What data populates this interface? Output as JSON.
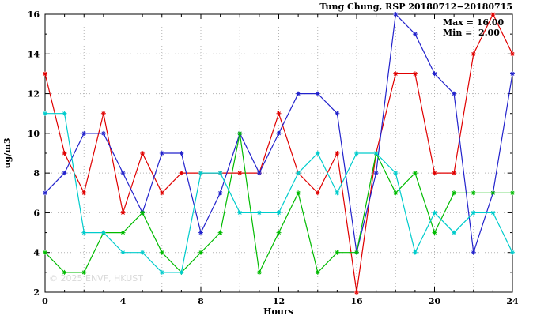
{
  "title": "Tung Chung, RSP 20180712−20180715",
  "annotations": {
    "max": "Max = 16.00",
    "min": "Min =  2.00"
  },
  "watermark": "© 2025 ENVF, HKUST",
  "chart_data": {
    "type": "line",
    "title": "Tung Chung, RSP 20180712−20180715",
    "xlabel": "Hours",
    "ylabel": "ug/m3",
    "xlim": [
      0,
      24
    ],
    "ylim": [
      2,
      16
    ],
    "xticks": [
      0,
      4,
      8,
      12,
      16,
      20,
      24
    ],
    "yticks": [
      2,
      4,
      6,
      8,
      10,
      12,
      14,
      16
    ],
    "grid": true,
    "legend": "none",
    "marker": "asterisk",
    "stats": {
      "max": 16.0,
      "min": 2.0
    },
    "x": [
      0,
      1,
      2,
      3,
      4,
      5,
      6,
      7,
      8,
      9,
      10,
      11,
      12,
      13,
      14,
      15,
      16,
      17,
      18,
      19,
      20,
      21,
      22,
      23,
      24
    ],
    "series": [
      {
        "name": "series-red",
        "color": "#e00000",
        "values": [
          13,
          9,
          7,
          11,
          6,
          9,
          7,
          8,
          8,
          8,
          8,
          8,
          11,
          8,
          7,
          9,
          2,
          9,
          13,
          13,
          8,
          8,
          14,
          16,
          14
        ]
      },
      {
        "name": "series-blue",
        "color": "#2222cc",
        "values": [
          7,
          8,
          10,
          10,
          8,
          6,
          9,
          9,
          5,
          7,
          10,
          8,
          10,
          12,
          12,
          11,
          4,
          8,
          16,
          15,
          13,
          12,
          4,
          7,
          13
        ]
      },
      {
        "name": "series-green",
        "color": "#00bb00",
        "values": [
          4,
          3,
          3,
          5,
          5,
          6,
          4,
          3,
          4,
          5,
          10,
          3,
          5,
          7,
          3,
          4,
          4,
          9,
          7,
          8,
          5,
          7,
          7,
          7,
          7
        ]
      },
      {
        "name": "series-cyan",
        "color": "#00cccc",
        "values": [
          11,
          11,
          5,
          5,
          4,
          4,
          3,
          3,
          8,
          8,
          6,
          6,
          6,
          8,
          9,
          7,
          9,
          9,
          8,
          4,
          6,
          5,
          6,
          6,
          4
        ]
      }
    ]
  }
}
